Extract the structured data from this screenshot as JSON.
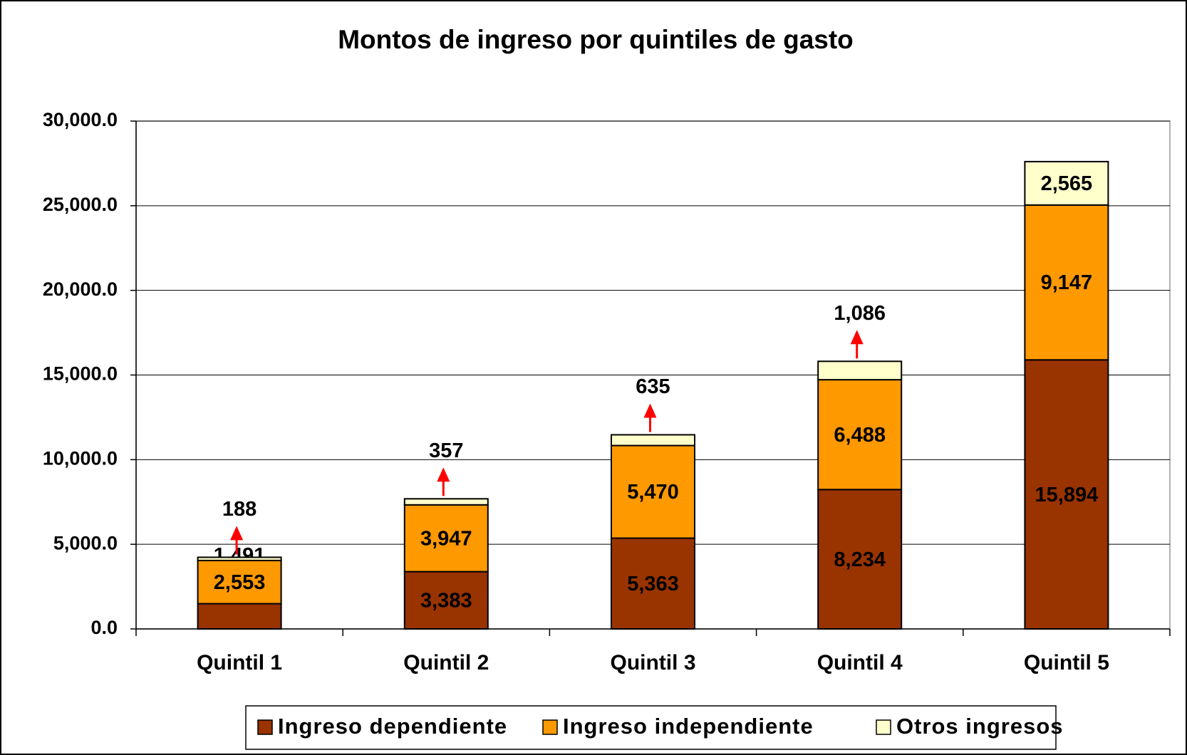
{
  "chart_data": {
    "type": "stacked_bar",
    "title": "Montos de ingreso por quintiles de gasto",
    "categories": [
      "Quintil 1",
      "Quintil 2",
      "Quintil 3",
      "Quintil 4",
      "Quintil 5"
    ],
    "series": [
      {
        "name": "Ingreso dependiente",
        "color": "#993300",
        "values": [
          1491,
          3383,
          5363,
          8234,
          15894
        ],
        "value_labels": [
          "1,491",
          "3,383",
          "5,363",
          "8,234",
          "15,894"
        ]
      },
      {
        "name": "Ingreso independiente",
        "color": "#ff9900",
        "values": [
          2553,
          3947,
          5470,
          6488,
          9147
        ],
        "value_labels": [
          "2,553",
          "3,947",
          "5,470",
          "6,488",
          "9,147"
        ]
      },
      {
        "name": "Otros ingresos",
        "color": "#ffffcc",
        "values": [
          188,
          357,
          635,
          1086,
          2565
        ],
        "value_labels": [
          "188",
          "357",
          "635",
          "1,086",
          "2,565"
        ]
      }
    ],
    "ylim": [
      0,
      30000
    ],
    "yticks": [
      {
        "value": 0,
        "label": "0.0"
      },
      {
        "value": 5000,
        "label": "5,000.0"
      },
      {
        "value": 10000,
        "label": "10,000.0"
      },
      {
        "value": 15000,
        "label": "15,000.0"
      },
      {
        "value": 20000,
        "label": "20,000.0"
      },
      {
        "value": 25000,
        "label": "25,000.0"
      },
      {
        "value": 30000,
        "label": "30,000.0"
      }
    ],
    "grid": true,
    "legend": "bottom"
  }
}
